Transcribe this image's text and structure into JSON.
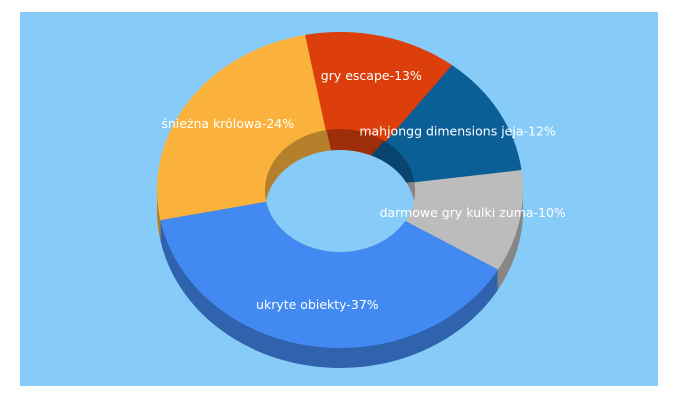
{
  "chart_data": {
    "type": "donut3d",
    "values": [
      13,
      12,
      10,
      37,
      24
    ],
    "value_labels": [
      "gry escape-13%",
      "mahjongg dimensions jeja-12%",
      "darmowe gry kulki zuma-10%",
      "ukryte obiekty-37%",
      "śnieżna królowa-24%"
    ],
    "colors": [
      "#dc3f0c",
      "#0b5f97",
      "#bcbcbc",
      "#428af2",
      "#fab23c"
    ],
    "background": "#87cbf9"
  }
}
